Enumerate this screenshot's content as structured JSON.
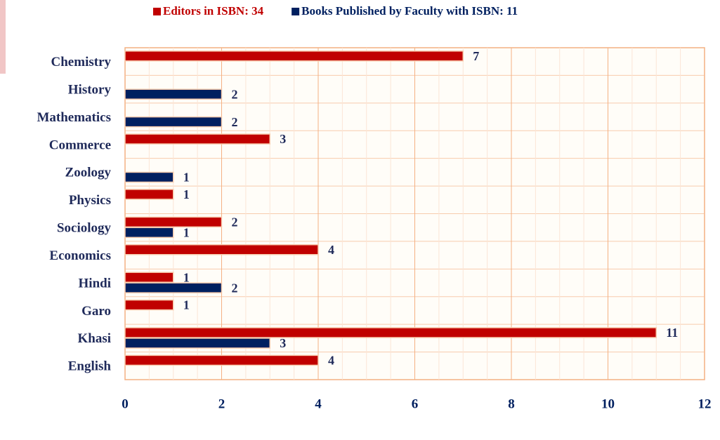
{
  "chart_data": {
    "type": "hbar",
    "categories": [
      "Chemistry",
      "History",
      "Mathematics",
      "Commerce",
      "Zoology",
      "Physics",
      "Sociology",
      "Economics",
      "Hindi",
      "Garo",
      "Khasi",
      "English"
    ],
    "series": [
      {
        "name": "Editors in ISBN: 34",
        "color": "#c00000",
        "values": [
          7,
          null,
          null,
          3,
          null,
          1,
          2,
          4,
          1,
          1,
          11,
          4
        ]
      },
      {
        "name": "Books Published by Faculty with ISBN: 11",
        "color": "#002060",
        "values": [
          null,
          2,
          2,
          null,
          1,
          null,
          1,
          null,
          2,
          null,
          3,
          null
        ]
      }
    ],
    "xlim": [
      0,
      12
    ],
    "xticks": [
      0,
      2,
      4,
      6,
      8,
      10,
      12
    ],
    "grid": true,
    "legend_position": "top"
  }
}
